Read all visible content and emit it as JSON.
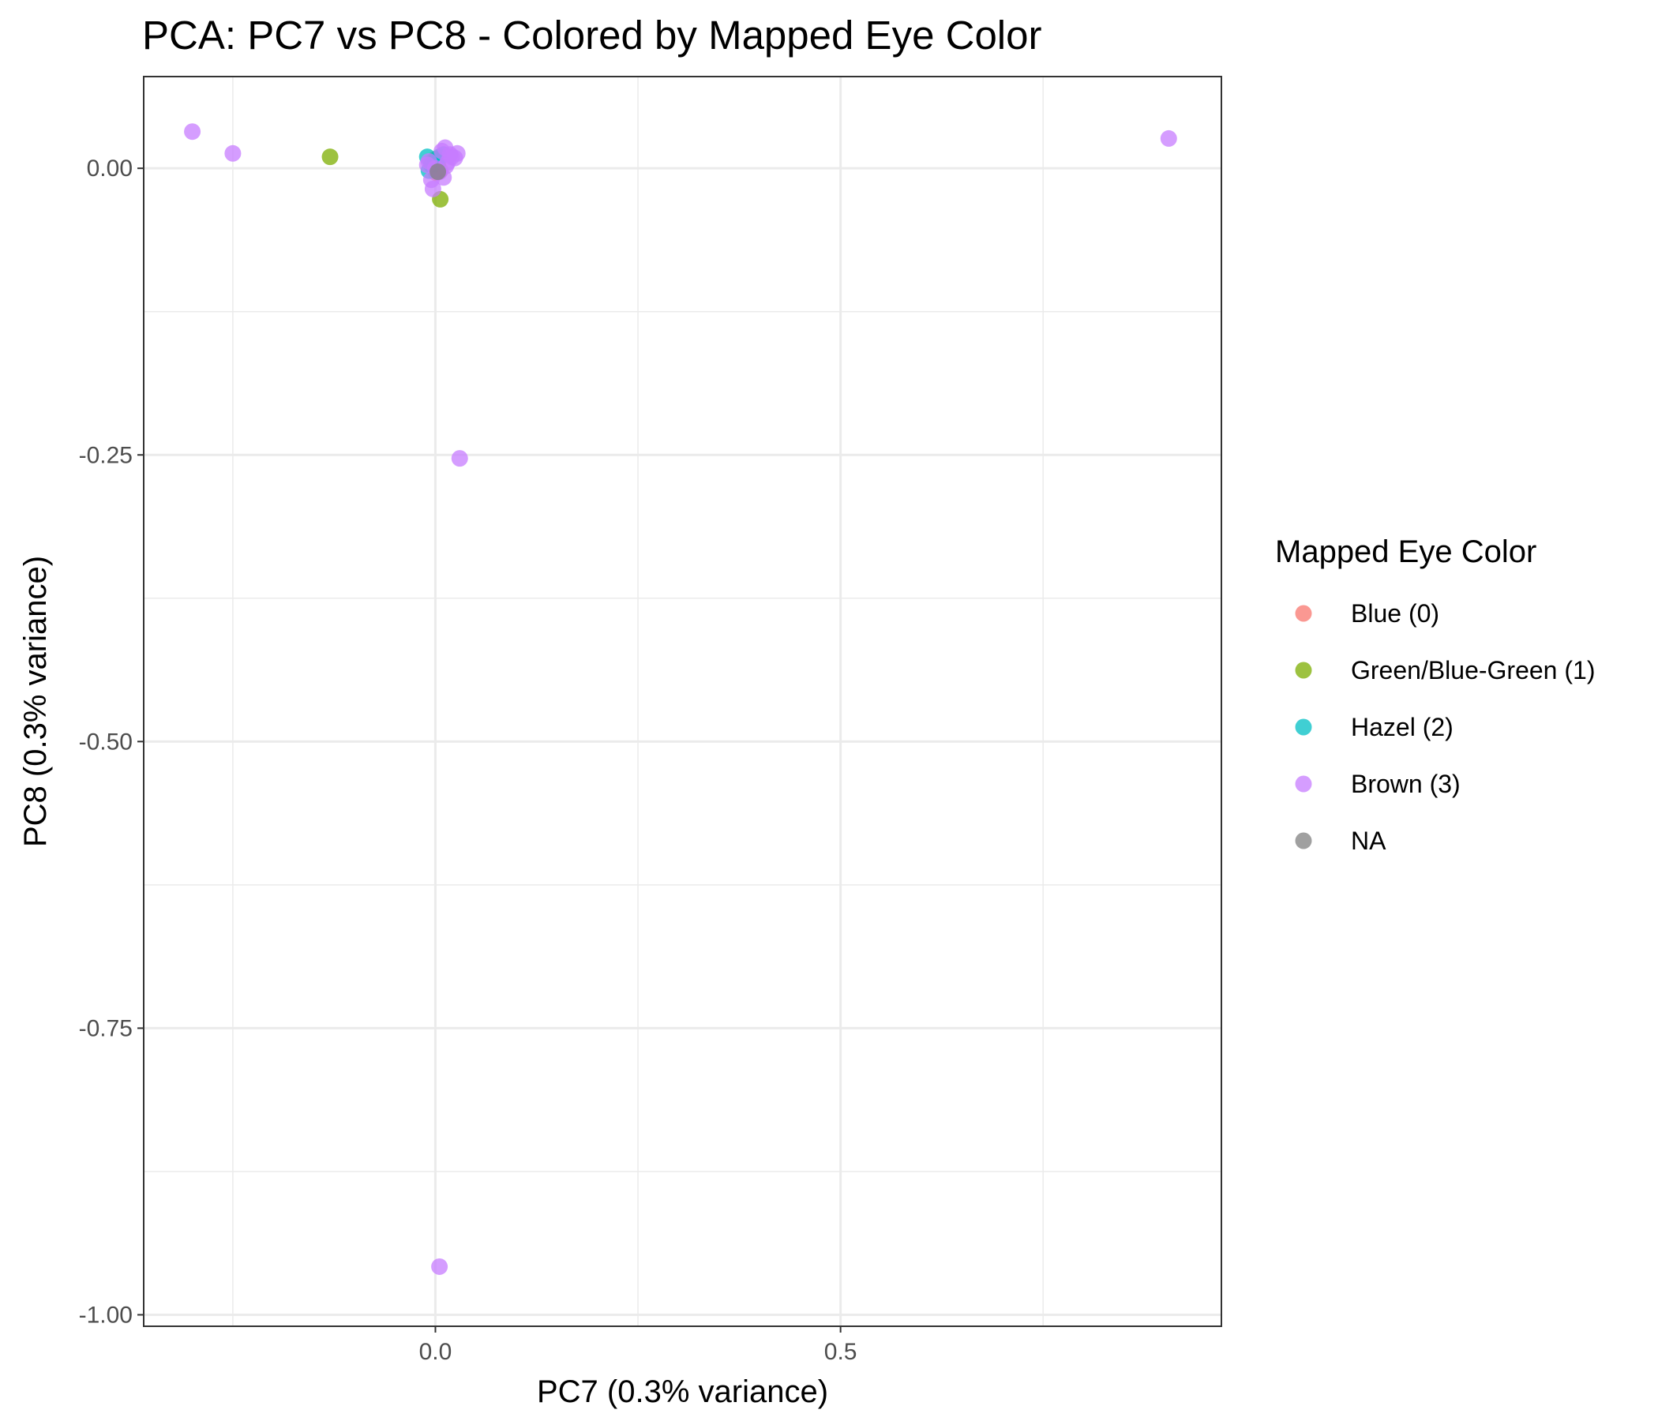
{
  "chart_data": {
    "type": "scatter",
    "title": "PCA: PC7 vs PC8 - Colored by Mapped Eye Color",
    "xlabel": "PC7 (0.3% variance)",
    "ylabel": "PC8 (0.3% variance)",
    "xlim": [
      -0.36,
      0.97
    ],
    "ylim": [
      -1.01,
      0.08
    ],
    "x_ticks": [
      0.0,
      0.5
    ],
    "x_tick_labels": [
      "0.0",
      "0.5"
    ],
    "y_ticks": [
      0.0,
      -0.25,
      -0.5,
      -0.75,
      -1.0
    ],
    "y_tick_labels": [
      "0.00",
      "-0.25",
      "-0.50",
      "-0.75",
      "-1.00"
    ],
    "grid": true,
    "legend": {
      "title": "Mapped Eye Color",
      "placement": "right"
    },
    "series": [
      {
        "name": "Blue (0)",
        "color": "#F8766D",
        "points": [
          [
            -0.005,
            0.005
          ],
          [
            0.0,
            0.008
          ],
          [
            0.003,
            0.002
          ],
          [
            0.006,
            -0.002
          ],
          [
            0.001,
            -0.004
          ]
        ]
      },
      {
        "name": "Green/Blue-Green (1)",
        "color": "#7CAE00",
        "points": [
          [
            -0.13,
            0.01
          ],
          [
            0.002,
            0.008
          ],
          [
            0.004,
            -0.003
          ],
          [
            0.006,
            -0.027
          ],
          [
            0.003,
            0.003
          ],
          [
            0.001,
            0.001
          ]
        ]
      },
      {
        "name": "Hazel (2)",
        "color": "#00BFC4",
        "points": [
          [
            -0.01,
            0.01
          ],
          [
            -0.005,
            0.003
          ],
          [
            0.005,
            0.01
          ],
          [
            0.01,
            0.012
          ],
          [
            -0.008,
            -0.002
          ],
          [
            0.0,
            0.005
          ]
        ]
      },
      {
        "name": "Brown (3)",
        "color": "#C77CFF",
        "points": [
          [
            -0.3,
            0.032
          ],
          [
            -0.25,
            0.013
          ],
          [
            0.905,
            0.026
          ],
          [
            0.03,
            -0.253
          ],
          [
            0.005,
            -0.958
          ],
          [
            0.012,
            0.018
          ],
          [
            0.027,
            0.013
          ],
          [
            0.02,
            0.01
          ],
          [
            0.015,
            0.005
          ],
          [
            0.01,
            -0.008
          ],
          [
            -0.01,
            0.003
          ],
          [
            -0.005,
            -0.01
          ],
          [
            -0.003,
            -0.018
          ],
          [
            0.0,
            0.0
          ],
          [
            0.018,
            0.012
          ],
          [
            0.008,
            0.015
          ],
          [
            0.024,
            0.009
          ],
          [
            0.005,
            -0.003
          ],
          [
            -0.008,
            0.006
          ],
          [
            0.013,
            0.002
          ]
        ]
      },
      {
        "name": "NA",
        "color": "#808080",
        "points": [
          [
            0.003,
            -0.003
          ]
        ]
      }
    ]
  }
}
